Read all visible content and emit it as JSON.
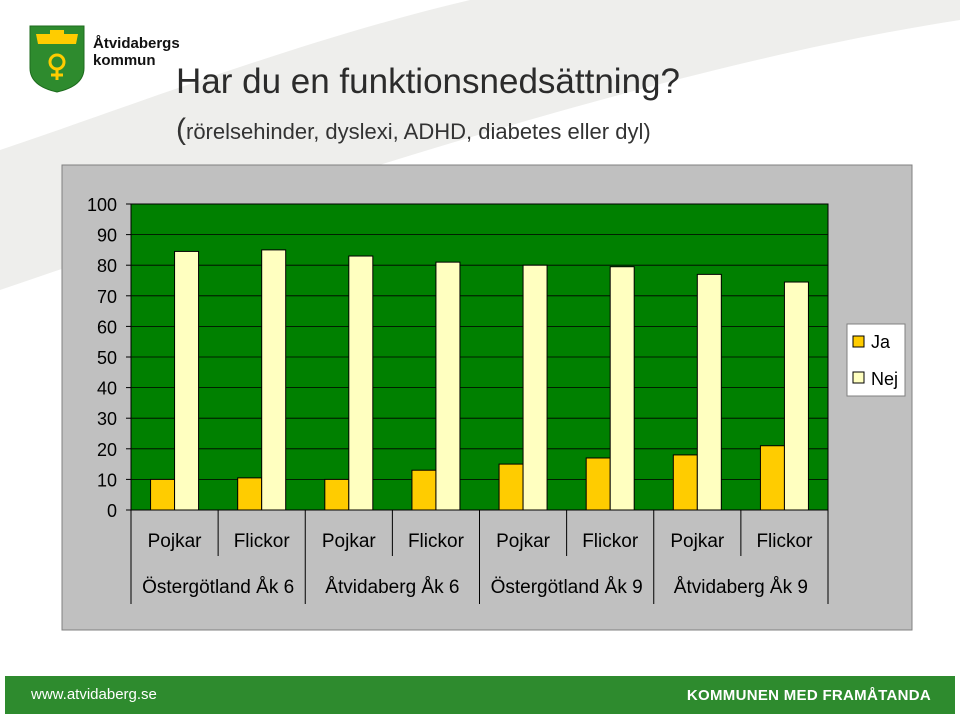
{
  "header": {
    "logo_line1": "Åtvidabergs",
    "logo_line2": "kommun",
    "title": "Har du en funktionsnedsättning?",
    "subtitle_open": "(",
    "subtitle_rest": "rörelsehinder, dyslexi, ADHD, diabetes eller dyl)"
  },
  "chart_data": {
    "type": "bar",
    "categories": [
      "Pojkar",
      "Flickor",
      "Pojkar",
      "Flickor",
      "Pojkar",
      "Flickor",
      "Pojkar",
      "Flickor"
    ],
    "groups": [
      "Östergötland Åk 6",
      "Åtvidaberg Åk 6",
      "Östergötland Åk 9",
      "Åtvidaberg Åk 9"
    ],
    "series": [
      {
        "name": "Ja",
        "values": [
          10,
          10.5,
          10,
          13,
          15,
          17,
          18,
          21
        ],
        "color": "#ffcc00"
      },
      {
        "name": "Nej",
        "values": [
          84.5,
          85,
          83,
          81,
          80,
          79.5,
          77,
          74.5
        ],
        "color": "#ffffc0"
      }
    ],
    "ylim": [
      0,
      100
    ],
    "yticks": [
      0,
      10,
      20,
      30,
      40,
      50,
      60,
      70,
      80,
      90,
      100
    ],
    "plot_background": "#008000",
    "outer_background": "#c0c0c0",
    "grid": true,
    "legend_position": "right"
  },
  "footer": {
    "website": "www.atvidaberg.se",
    "slogan": "KOMMUNEN MED FRAMÅTANDA"
  }
}
